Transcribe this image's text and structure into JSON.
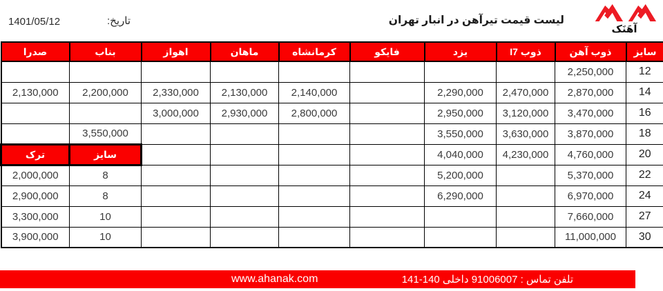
{
  "header": {
    "date_value": "1401/05/12",
    "date_label": "تاریخ:",
    "title": "لیست قیمت تیرآهن در انبار تهران",
    "logo_text": "آهَنَک"
  },
  "colors": {
    "accent_red": "#fa0000",
    "border_black": "#000000",
    "text_dark": "#333333",
    "header_text": "#ffffff"
  },
  "table": {
    "columns": [
      "سایز",
      "ذوب آهن",
      "ذوب I7",
      "یزد",
      "فایکو",
      "کرمانشاه",
      "ماهان",
      "اهواز",
      "بناب",
      "صدرا"
    ],
    "rows": [
      {
        "cells": [
          "12",
          "2,250,000",
          "",
          "",
          "",
          "",
          "",
          "",
          "",
          ""
        ]
      },
      {
        "cells": [
          "14",
          "2,870,000",
          "2,470,000",
          "2,290,000",
          "",
          "2,140,000",
          "2,130,000",
          "2,330,000",
          "2,200,000",
          "2,130,000"
        ]
      },
      {
        "cells": [
          "16",
          "3,470,000",
          "3,120,000",
          "2,950,000",
          "",
          "2,800,000",
          "2,930,000",
          "3,000,000",
          "",
          ""
        ]
      },
      {
        "cells": [
          "18",
          "3,870,000",
          "3,630,000",
          "3,550,000",
          "",
          "",
          "",
          "",
          "3,550,000",
          ""
        ]
      },
      {
        "cells": [
          "20",
          "4,760,000",
          "4,230,000",
          "4,040,000",
          "",
          "",
          "",
          "",
          "سایز",
          "ترک"
        ],
        "red_cols": [
          8,
          9
        ]
      },
      {
        "cells": [
          "22",
          "5,370,000",
          "",
          "5,200,000",
          "",
          "",
          "",
          "",
          "8",
          "2,000,000"
        ]
      },
      {
        "cells": [
          "24",
          "6,970,000",
          "",
          "6,290,000",
          "",
          "",
          "",
          "",
          "8",
          "2,900,000"
        ]
      },
      {
        "cells": [
          "27",
          "7,660,000",
          "",
          "",
          "",
          "",
          "",
          "",
          "10",
          "3,300,000"
        ]
      },
      {
        "cells": [
          "30",
          "11,000,000",
          "",
          "",
          "",
          "",
          "",
          "",
          "10",
          "3,900,000"
        ]
      }
    ]
  },
  "turk_subtable": {
    "headers": [
      "ترک",
      "سایز"
    ],
    "rows": [
      [
        "2,000,000",
        "8"
      ],
      [
        "2,900,000",
        "8"
      ],
      [
        "3,300,000",
        "10"
      ],
      [
        "3,900,000",
        "10"
      ]
    ]
  },
  "footer": {
    "phone": "تلفن تماس : 91006007 داخلی 140-141",
    "website": "www.ahanak.com"
  }
}
